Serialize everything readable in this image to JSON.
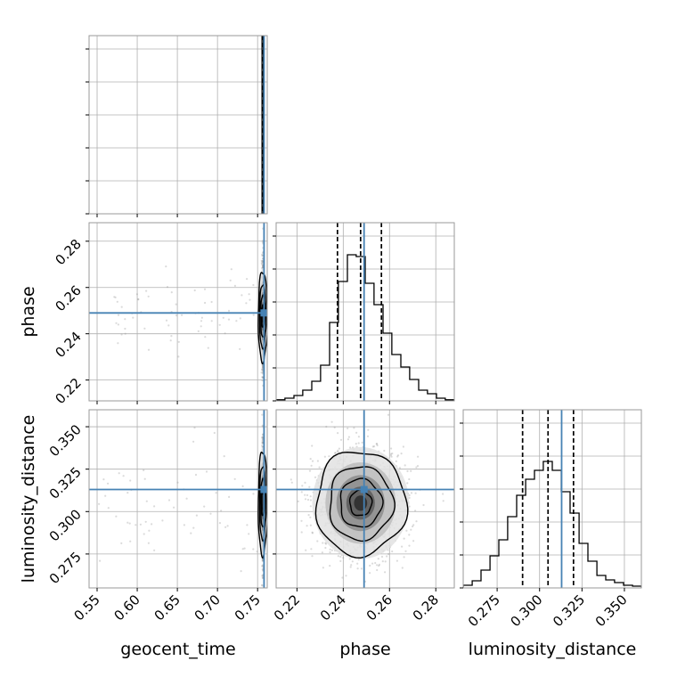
{
  "chart_data": {
    "type": "corner",
    "parameters": [
      "geocent_time",
      "phase",
      "luminosity_distance"
    ],
    "axis_labels": {
      "x": [
        "geocent_time",
        "phase",
        "luminosity_distance"
      ],
      "y": [
        "",
        "phase",
        "luminosity_distance"
      ]
    },
    "ranges": {
      "geocent_time": [
        0.54,
        0.762
      ],
      "phase": [
        0.211,
        0.288
      ],
      "luminosity_distance": [
        0.255,
        0.36
      ]
    },
    "ticks": {
      "geocent_time": [
        "0.55",
        "0.60",
        "0.65",
        "0.70",
        "0.75"
      ],
      "phase": [
        "0.22",
        "0.24",
        "0.26",
        "0.28"
      ],
      "luminosity_distance": [
        "0.275",
        "0.300",
        "0.325",
        "0.350"
      ]
    },
    "truths": {
      "geocent_time": 0.758,
      "phase": 0.249,
      "luminosity_distance": 0.313
    },
    "quantiles": {
      "geocent_time": [
        0.756,
        0.7565,
        0.757
      ],
      "phase": [
        0.2375,
        0.2475,
        0.2565
      ],
      "luminosity_distance": [
        0.29,
        0.305,
        0.32
      ]
    },
    "histograms": {
      "geocent_time": {
        "bin_edges": [
          0.7555,
          0.7562,
          0.7572
        ],
        "counts": [
          1.0,
          1.0
        ]
      },
      "phase": {
        "bin_edges": [
          0.211,
          0.2148,
          0.2187,
          0.2225,
          0.2264,
          0.2302,
          0.2341,
          0.2379,
          0.2418,
          0.2456,
          0.2495,
          0.2533,
          0.2572,
          0.261,
          0.2649,
          0.2687,
          0.2726,
          0.2764,
          0.2803,
          0.2841,
          0.288
        ],
        "counts": [
          0.006,
          0.015,
          0.03,
          0.06,
          0.11,
          0.2,
          0.44,
          0.67,
          0.82,
          0.81,
          0.66,
          0.54,
          0.38,
          0.26,
          0.19,
          0.12,
          0.06,
          0.04,
          0.015,
          0.006
        ]
      },
      "luminosity_distance": {
        "bin_edges": [
          0.255,
          0.2603,
          0.2655,
          0.2708,
          0.276,
          0.2812,
          0.2865,
          0.2918,
          0.297,
          0.3022,
          0.3075,
          0.3128,
          0.318,
          0.3233,
          0.3285,
          0.3338,
          0.339,
          0.3442,
          0.3495,
          0.3548,
          0.36
        ],
        "counts": [
          0.015,
          0.04,
          0.1,
          0.18,
          0.27,
          0.4,
          0.52,
          0.61,
          0.66,
          0.71,
          0.66,
          0.54,
          0.42,
          0.25,
          0.15,
          0.07,
          0.045,
          0.03,
          0.015,
          0.01
        ]
      }
    },
    "contour_levels_2d": [
      0.12,
      0.24,
      0.35,
      0.46
    ],
    "colors": {
      "truth": "#4682b4",
      "hist": "#000000",
      "grid": "#b0b0b0",
      "scatter": "#999999"
    },
    "grid": true,
    "legend": "none"
  }
}
